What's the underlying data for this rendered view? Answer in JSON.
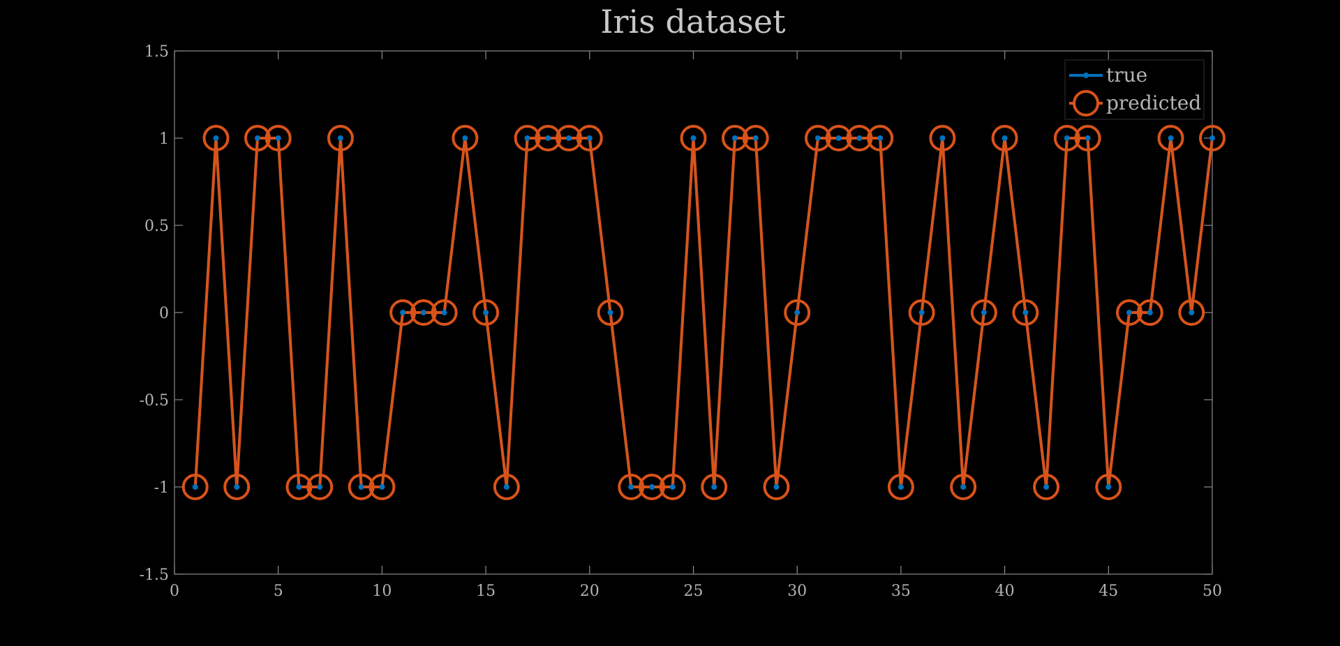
{
  "chart_data": {
    "type": "line",
    "title": "Iris dataset",
    "xlabel": "",
    "ylabel": "",
    "xlim": [
      0,
      50
    ],
    "ylim": [
      -1.5,
      1.5
    ],
    "xticks": [
      0,
      5,
      10,
      15,
      20,
      25,
      30,
      35,
      40,
      45,
      50
    ],
    "yticks": [
      -1.5,
      -1,
      -0.5,
      0,
      0.5,
      1,
      1.5
    ],
    "ytick_labels": [
      "-1.5",
      "-1",
      "-0.5",
      "0",
      "0.5",
      "1",
      "1.5"
    ],
    "grid": false,
    "legend_position": "top-right",
    "x": [
      1,
      2,
      3,
      4,
      5,
      6,
      7,
      8,
      9,
      10,
      11,
      12,
      13,
      14,
      15,
      16,
      17,
      18,
      19,
      20,
      21,
      22,
      23,
      24,
      25,
      26,
      27,
      28,
      29,
      30,
      31,
      32,
      33,
      34,
      35,
      36,
      37,
      38,
      39,
      40,
      41,
      42,
      43,
      44,
      45,
      46,
      47,
      48,
      49,
      50
    ],
    "series": [
      {
        "name": "true",
        "color": "#0072bd",
        "marker": "point",
        "values": [
          -1,
          1,
          -1,
          1,
          1,
          -1,
          -1,
          1,
          -1,
          -1,
          0,
          0,
          0,
          1,
          0,
          -1,
          1,
          1,
          1,
          1,
          0,
          -1,
          -1,
          -1,
          1,
          -1,
          1,
          1,
          -1,
          0,
          1,
          1,
          1,
          1,
          -1,
          0,
          1,
          -1,
          0,
          1,
          0,
          -1,
          1,
          1,
          -1,
          0,
          0,
          1,
          0,
          1
        ]
      },
      {
        "name": "predicted",
        "color": "#d95319",
        "marker": "circle",
        "values": [
          -1,
          1,
          -1,
          1,
          1,
          -1,
          -1,
          1,
          -1,
          -1,
          0,
          0,
          0,
          1,
          0,
          -1,
          1,
          1,
          1,
          1,
          0,
          -1,
          -1,
          -1,
          1,
          -1,
          1,
          1,
          -1,
          0,
          1,
          1,
          1,
          1,
          -1,
          0,
          1,
          -1,
          0,
          1,
          0,
          -1,
          1,
          1,
          -1,
          0,
          0,
          1,
          0,
          1
        ]
      }
    ]
  }
}
